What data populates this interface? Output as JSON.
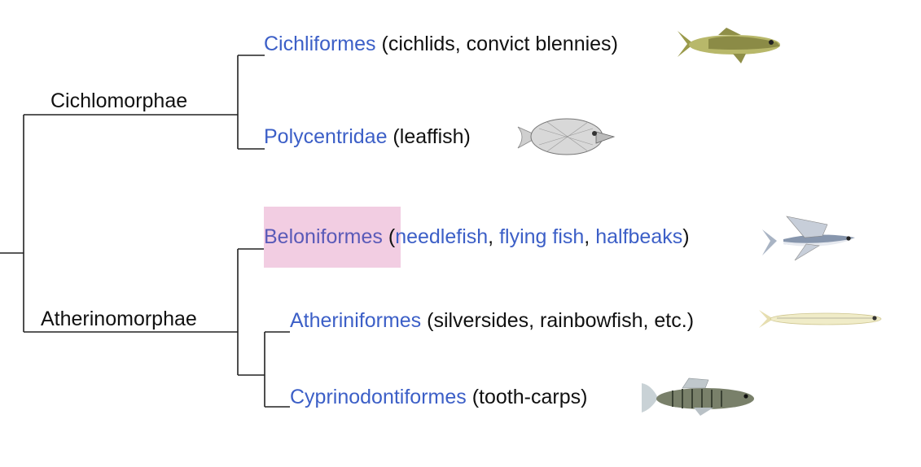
{
  "clades": {
    "cichlomorphae": "Cichlomorphae",
    "atherinomorphae": "Atherinomorphae"
  },
  "taxa": {
    "cichliformes": {
      "name": "Cichliformes",
      "open": " (",
      "common": "cichlids, convict blennies",
      "close": ")"
    },
    "polycentridae": {
      "name": "Polycentridae",
      "open": " (",
      "common": "leaffish",
      "close": ")"
    },
    "beloniformes": {
      "name": "Beloniformes",
      "open": " (",
      "links": [
        "needlefish",
        "flying fish",
        "halfbeaks"
      ],
      "sep": ", ",
      "close": ")"
    },
    "atheriniformes": {
      "name": "Atheriniformes",
      "open": " (",
      "common": "silversides, rainbowfish, etc.",
      "close": ")"
    },
    "cyprinodontiformes": {
      "name": "Cyprinodontiformes",
      "open": " (",
      "common": "tooth-carps",
      "close": ")"
    }
  },
  "colors": {
    "link": "#3c5fc7",
    "highlight": "#f2cde2",
    "branch": "#222222"
  },
  "icons": {
    "cichliformes": "bass-fish-illustration",
    "polycentridae": "leaffish-illustration",
    "beloniformes": "flying-fish-illustration",
    "atheriniformes": "silverside-illustration",
    "cyprinodontiformes": "killifish-illustration"
  }
}
